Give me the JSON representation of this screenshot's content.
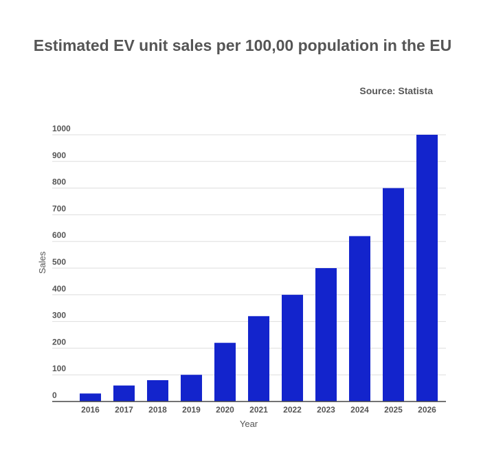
{
  "header": {
    "title": "Estimated EV unit sales per 100,00 population in the EU",
    "source": "Source: Statista"
  },
  "chart_data": {
    "type": "bar",
    "title": "Estimated EV unit sales per 100,00 population in the EU",
    "subtitle": "Source: Statista",
    "xlabel": "Year",
    "ylabel": "Sales",
    "categories": [
      "2016",
      "2017",
      "2018",
      "2019",
      "2020",
      "2021",
      "2022",
      "2023",
      "2024",
      "2025",
      "2026"
    ],
    "values": [
      30,
      60,
      80,
      100,
      220,
      320,
      400,
      500,
      620,
      800,
      1000
    ],
    "ylim": [
      0,
      1000
    ],
    "yticks": [
      0,
      100,
      200,
      300,
      400,
      500,
      600,
      700,
      800,
      900,
      1000
    ],
    "grid": true,
    "legend": "none",
    "colors": {
      "bar": "#1324cc",
      "grid": "#dddddd",
      "axis": "#444444"
    }
  }
}
